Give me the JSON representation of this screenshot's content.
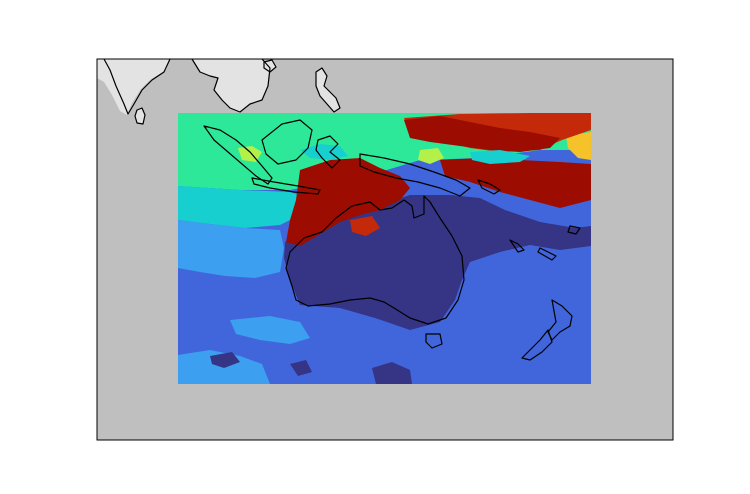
{
  "map": {
    "type": "raster-map",
    "colors": {
      "figure_background": "#ffffff",
      "axes_background": "#bfbfbf",
      "land_outside_data": "#e3e3e3",
      "coastline": "#000000",
      "data_classes": [
        "#353485",
        "#4166dc",
        "#3c9ff0",
        "#18cfcf",
        "#2ee89a",
        "#b4f04a",
        "#f5c22a",
        "#c42a0a",
        "#9c0c00"
      ]
    }
  }
}
